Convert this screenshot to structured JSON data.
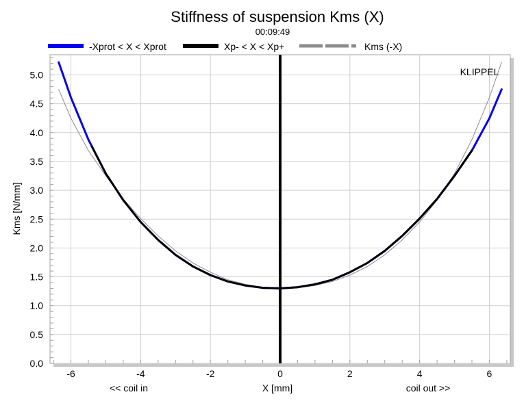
{
  "chart_data": {
    "type": "line",
    "title": "Stiffness of suspension Kms (X)",
    "subtitle": "00:09:49",
    "watermark": "KLIPPEL",
    "xlabel": "X [mm]",
    "xlabel_left": "<< coil in",
    "xlabel_right": "coil out >>",
    "ylabel": "Kms [N/mm]",
    "xlim": [
      -6.6,
      6.6
    ],
    "ylim": [
      0.0,
      5.35
    ],
    "x_ticks": [
      -6,
      -4,
      -2,
      0,
      2,
      4,
      6
    ],
    "x_tick_labels": [
      "-6",
      "-4",
      "-2",
      "0",
      "2",
      "4",
      "6"
    ],
    "y_ticks": [
      0,
      0.5,
      1,
      1.5,
      2,
      2.5,
      3,
      3.5,
      4,
      4.5,
      5
    ],
    "y_tick_labels": [
      "0.0",
      "0.5",
      "1.0",
      "1.5",
      "2.0",
      "2.5",
      "3.0",
      "3.5",
      "4.0",
      "4.5",
      "5.0"
    ],
    "grid": true,
    "legend_position": "top",
    "series": [
      {
        "name": "-Xprot < X < Xprot",
        "color": "#0000ee",
        "x": [
          -6.35,
          -6.0,
          -5.5,
          -5.0,
          -4.5,
          -4.0,
          -3.5,
          -3.0,
          -2.5,
          -2.0,
          -1.5,
          -1.0,
          -0.5,
          0.0,
          0.5,
          1.0,
          1.5,
          2.0,
          2.5,
          3.0,
          3.5,
          4.0,
          4.5,
          5.0,
          5.5,
          6.0,
          6.35
        ],
        "y": [
          5.22,
          4.61,
          3.88,
          3.29,
          2.83,
          2.45,
          2.14,
          1.88,
          1.68,
          1.53,
          1.42,
          1.35,
          1.31,
          1.3,
          1.32,
          1.37,
          1.45,
          1.58,
          1.74,
          1.95,
          2.21,
          2.51,
          2.85,
          3.25,
          3.69,
          4.25,
          4.75
        ]
      },
      {
        "name": "Xp- < X < Xp+",
        "color": "#000000",
        "x": [
          -5.4,
          -5.0,
          -4.5,
          -4.0,
          -3.5,
          -3.0,
          -2.5,
          -2.0,
          -1.5,
          -1.0,
          -0.5,
          0.0,
          0.5,
          1.0,
          1.5,
          2.0,
          2.5,
          3.0,
          3.5,
          4.0,
          4.5,
          5.0,
          5.5
        ],
        "y": [
          3.76,
          3.29,
          2.83,
          2.45,
          2.14,
          1.88,
          1.68,
          1.53,
          1.42,
          1.35,
          1.31,
          1.3,
          1.32,
          1.37,
          1.45,
          1.58,
          1.74,
          1.95,
          2.21,
          2.51,
          2.85,
          3.25,
          3.69
        ]
      },
      {
        "name": "Kms (-X)",
        "color": "#8c8c8c",
        "x": [
          -6.35,
          -6.0,
          -5.5,
          -5.0,
          -4.5,
          -4.0,
          -3.5,
          -3.0,
          -2.5,
          -2.0,
          -1.5,
          -1.0,
          -0.5,
          0.0,
          0.5,
          1.0,
          1.5,
          2.0,
          2.5,
          3.0,
          3.5,
          4.0,
          4.5,
          5.0,
          5.5,
          6.0,
          6.35
        ],
        "y": [
          4.75,
          4.25,
          3.69,
          3.25,
          2.85,
          2.51,
          2.21,
          1.95,
          1.74,
          1.58,
          1.45,
          1.37,
          1.32,
          1.3,
          1.31,
          1.35,
          1.42,
          1.53,
          1.68,
          1.88,
          2.14,
          2.45,
          2.83,
          3.29,
          3.88,
          4.61,
          5.22
        ]
      }
    ],
    "vertical_markers": [
      {
        "x": 0,
        "color": "#000000"
      }
    ]
  }
}
